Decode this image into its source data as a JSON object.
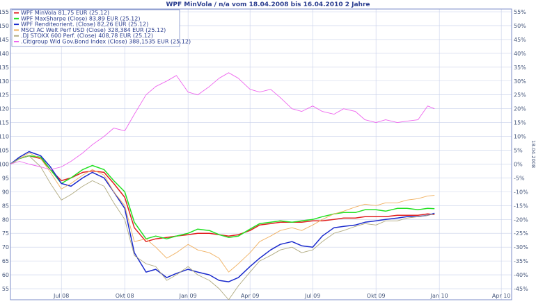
{
  "chart_data": {
    "type": "line",
    "title": "WPF MinVola / n/a vom 18.04.2008 bis 16.04.2010 2 Jahre",
    "side_label": "18.04.2008",
    "x_ticks": [
      "Jul 08",
      "Okt 08",
      "Jan 09",
      "Apr 09",
      "Jul 09",
      "Okt 09",
      "Jan 10",
      "Apr 10"
    ],
    "y_left_ticks": [
      55,
      60,
      65,
      70,
      75,
      80,
      85,
      90,
      95,
      100,
      105,
      110,
      115,
      120,
      125,
      130,
      135,
      140,
      145,
      150,
      155
    ],
    "y_right_ticks": [
      "-45%",
      "-40%",
      "-35%",
      "-30%",
      "-25%",
      "-20%",
      "-15%",
      "-10%",
      "-5%",
      "0%",
      "5%",
      "10%",
      "15%",
      "20%",
      "25%",
      "30%",
      "35%",
      "40%",
      "45%",
      "50%",
      "55%"
    ],
    "ylim": [
      51,
      156
    ],
    "xlim": [
      "2008-04-18",
      "2010-04-16"
    ],
    "grid": true,
    "legend_position": "top-left",
    "series": [
      {
        "name": "WPF MinVola 81,75 EUR (25.12)",
        "color": "#e02020",
        "points": [
          [
            "2008-04-18",
            100
          ],
          [
            "2008-05-01",
            102
          ],
          [
            "2008-05-15",
            103
          ],
          [
            "2008-06-01",
            102
          ],
          [
            "2008-06-15",
            98
          ],
          [
            "2008-07-01",
            94
          ],
          [
            "2008-07-15",
            95
          ],
          [
            "2008-08-01",
            97
          ],
          [
            "2008-08-15",
            97.5
          ],
          [
            "2008-09-01",
            97
          ],
          [
            "2008-09-15",
            93
          ],
          [
            "2008-10-01",
            88
          ],
          [
            "2008-10-15",
            77
          ],
          [
            "2008-11-01",
            72
          ],
          [
            "2008-11-15",
            73
          ],
          [
            "2008-12-01",
            73.5
          ],
          [
            "2008-12-15",
            74
          ],
          [
            "2009-01-01",
            74.5
          ],
          [
            "2009-01-15",
            75
          ],
          [
            "2009-02-01",
            75
          ],
          [
            "2009-02-15",
            74.5
          ],
          [
            "2009-03-01",
            74
          ],
          [
            "2009-03-15",
            74.5
          ],
          [
            "2009-04-01",
            76
          ],
          [
            "2009-04-15",
            78
          ],
          [
            "2009-05-01",
            78.5
          ],
          [
            "2009-05-15",
            79
          ],
          [
            "2009-06-01",
            79
          ],
          [
            "2009-06-15",
            79
          ],
          [
            "2009-07-01",
            79.5
          ],
          [
            "2009-07-15",
            79.5
          ],
          [
            "2009-08-01",
            80
          ],
          [
            "2009-08-15",
            80.5
          ],
          [
            "2009-09-01",
            80.5
          ],
          [
            "2009-09-15",
            81
          ],
          [
            "2009-10-01",
            81
          ],
          [
            "2009-10-15",
            81
          ],
          [
            "2009-11-01",
            81.5
          ],
          [
            "2009-11-15",
            81.5
          ],
          [
            "2009-12-01",
            81.5
          ],
          [
            "2009-12-15",
            82
          ],
          [
            "2009-12-25",
            81.75
          ]
        ]
      },
      {
        "name": "WPF MaxSharpe (Close) 83,89 EUR (25.12)",
        "color": "#22e022",
        "points": [
          [
            "2008-04-18",
            100
          ],
          [
            "2008-05-01",
            102
          ],
          [
            "2008-05-15",
            103
          ],
          [
            "2008-06-01",
            102.5
          ],
          [
            "2008-06-15",
            98
          ],
          [
            "2008-07-01",
            93
          ],
          [
            "2008-07-15",
            95
          ],
          [
            "2008-08-01",
            98
          ],
          [
            "2008-08-15",
            99.5
          ],
          [
            "2008-09-01",
            98
          ],
          [
            "2008-09-15",
            94
          ],
          [
            "2008-10-01",
            90
          ],
          [
            "2008-10-15",
            79
          ],
          [
            "2008-11-01",
            73
          ],
          [
            "2008-11-15",
            74
          ],
          [
            "2008-12-01",
            73
          ],
          [
            "2008-12-15",
            74
          ],
          [
            "2009-01-01",
            75
          ],
          [
            "2009-01-15",
            76.5
          ],
          [
            "2009-02-01",
            76
          ],
          [
            "2009-02-15",
            74.5
          ],
          [
            "2009-03-01",
            73.5
          ],
          [
            "2009-03-15",
            74
          ],
          [
            "2009-04-01",
            76.5
          ],
          [
            "2009-04-15",
            78.5
          ],
          [
            "2009-05-01",
            79
          ],
          [
            "2009-05-15",
            79.5
          ],
          [
            "2009-06-01",
            79
          ],
          [
            "2009-06-15",
            79.5
          ],
          [
            "2009-07-01",
            80
          ],
          [
            "2009-07-15",
            81
          ],
          [
            "2009-08-01",
            82
          ],
          [
            "2009-08-15",
            82.5
          ],
          [
            "2009-09-01",
            82.5
          ],
          [
            "2009-09-15",
            83.5
          ],
          [
            "2009-10-01",
            83.5
          ],
          [
            "2009-10-15",
            83
          ],
          [
            "2009-11-01",
            84
          ],
          [
            "2009-11-15",
            84
          ],
          [
            "2009-12-01",
            83.5
          ],
          [
            "2009-12-15",
            84
          ],
          [
            "2009-12-25",
            83.89
          ]
        ]
      },
      {
        "name": "WPF Renditeorient. (Close) 82,26 EUR (25.12)",
        "color": "#1a2acc",
        "points": [
          [
            "2008-04-18",
            100
          ],
          [
            "2008-05-01",
            102.5
          ],
          [
            "2008-05-15",
            104.5
          ],
          [
            "2008-06-01",
            103
          ],
          [
            "2008-06-15",
            99
          ],
          [
            "2008-07-01",
            93
          ],
          [
            "2008-07-15",
            92
          ],
          [
            "2008-08-01",
            95
          ],
          [
            "2008-08-15",
            97
          ],
          [
            "2008-09-01",
            95
          ],
          [
            "2008-09-15",
            90
          ],
          [
            "2008-10-01",
            84
          ],
          [
            "2008-10-15",
            68
          ],
          [
            "2008-11-01",
            61
          ],
          [
            "2008-11-15",
            62
          ],
          [
            "2008-12-01",
            59
          ],
          [
            "2008-12-15",
            60.5
          ],
          [
            "2009-01-01",
            62
          ],
          [
            "2009-01-15",
            61
          ],
          [
            "2009-02-01",
            60
          ],
          [
            "2009-02-15",
            58
          ],
          [
            "2009-03-01",
            57.5
          ],
          [
            "2009-03-15",
            59
          ],
          [
            "2009-04-01",
            63
          ],
          [
            "2009-04-15",
            66
          ],
          [
            "2009-05-01",
            69
          ],
          [
            "2009-05-15",
            71
          ],
          [
            "2009-06-01",
            72
          ],
          [
            "2009-06-15",
            70.5
          ],
          [
            "2009-07-01",
            70
          ],
          [
            "2009-07-15",
            74
          ],
          [
            "2009-08-01",
            77
          ],
          [
            "2009-08-15",
            77.5
          ],
          [
            "2009-09-01",
            78
          ],
          [
            "2009-09-15",
            79
          ],
          [
            "2009-10-01",
            79.5
          ],
          [
            "2009-10-15",
            80
          ],
          [
            "2009-11-01",
            80.5
          ],
          [
            "2009-11-15",
            81
          ],
          [
            "2009-12-01",
            81
          ],
          [
            "2009-12-15",
            81.5
          ],
          [
            "2009-12-25",
            82.26
          ]
        ]
      },
      {
        "name": "MSCI AC Welt Perf USD (Close) 328,384 EUR (25.12)",
        "color": "#f0b060",
        "points": [
          [
            "2008-04-18",
            100
          ],
          [
            "2008-05-01",
            102
          ],
          [
            "2008-05-15",
            104
          ],
          [
            "2008-06-01",
            102
          ],
          [
            "2008-06-15",
            97
          ],
          [
            "2008-07-01",
            91
          ],
          [
            "2008-07-15",
            93
          ],
          [
            "2008-08-01",
            96
          ],
          [
            "2008-08-15",
            98
          ],
          [
            "2008-09-01",
            96
          ],
          [
            "2008-09-15",
            90
          ],
          [
            "2008-10-01",
            85
          ],
          [
            "2008-10-15",
            72
          ],
          [
            "2008-11-01",
            73
          ],
          [
            "2008-11-15",
            70
          ],
          [
            "2008-12-01",
            66
          ],
          [
            "2008-12-15",
            68
          ],
          [
            "2009-01-01",
            71
          ],
          [
            "2009-01-15",
            69
          ],
          [
            "2009-02-01",
            68
          ],
          [
            "2009-02-15",
            66
          ],
          [
            "2009-03-01",
            61
          ],
          [
            "2009-03-15",
            64
          ],
          [
            "2009-04-01",
            68
          ],
          [
            "2009-04-15",
            72
          ],
          [
            "2009-05-01",
            74
          ],
          [
            "2009-05-15",
            76
          ],
          [
            "2009-06-01",
            77
          ],
          [
            "2009-06-15",
            76
          ],
          [
            "2009-07-01",
            78
          ],
          [
            "2009-07-15",
            80
          ],
          [
            "2009-08-01",
            82
          ],
          [
            "2009-08-15",
            83
          ],
          [
            "2009-09-01",
            84.5
          ],
          [
            "2009-09-15",
            85.5
          ],
          [
            "2009-10-01",
            85
          ],
          [
            "2009-10-15",
            86
          ],
          [
            "2009-11-01",
            86
          ],
          [
            "2009-11-15",
            87
          ],
          [
            "2009-12-01",
            87.5
          ],
          [
            "2009-12-15",
            88.5
          ],
          [
            "2009-12-25",
            88.7
          ]
        ]
      },
      {
        "name": ".DJ STOXX 600 Perf. (Close) 408,78 EUR (25.12)",
        "color": "#b0aa80",
        "points": [
          [
            "2008-04-18",
            100
          ],
          [
            "2008-05-01",
            102
          ],
          [
            "2008-05-15",
            103
          ],
          [
            "2008-06-01",
            99
          ],
          [
            "2008-06-15",
            93
          ],
          [
            "2008-07-01",
            87
          ],
          [
            "2008-07-15",
            89
          ],
          [
            "2008-08-01",
            92
          ],
          [
            "2008-08-15",
            94
          ],
          [
            "2008-09-01",
            92
          ],
          [
            "2008-09-15",
            86
          ],
          [
            "2008-10-01",
            80
          ],
          [
            "2008-10-15",
            67
          ],
          [
            "2008-11-01",
            64
          ],
          [
            "2008-11-15",
            63
          ],
          [
            "2008-12-01",
            58
          ],
          [
            "2008-12-15",
            60
          ],
          [
            "2009-01-01",
            63
          ],
          [
            "2009-01-15",
            60
          ],
          [
            "2009-02-01",
            58
          ],
          [
            "2009-02-15",
            55
          ],
          [
            "2009-03-01",
            51
          ],
          [
            "2009-03-15",
            56
          ],
          [
            "2009-04-01",
            61
          ],
          [
            "2009-04-15",
            65
          ],
          [
            "2009-05-01",
            67
          ],
          [
            "2009-05-15",
            69
          ],
          [
            "2009-06-01",
            70
          ],
          [
            "2009-06-15",
            68
          ],
          [
            "2009-07-01",
            69
          ],
          [
            "2009-07-15",
            72
          ],
          [
            "2009-08-01",
            75
          ],
          [
            "2009-08-15",
            76
          ],
          [
            "2009-09-01",
            77.5
          ],
          [
            "2009-09-15",
            78.5
          ],
          [
            "2009-10-01",
            78
          ],
          [
            "2009-10-15",
            79.5
          ],
          [
            "2009-11-01",
            79.5
          ],
          [
            "2009-11-15",
            80.5
          ],
          [
            "2009-12-01",
            81
          ],
          [
            "2009-12-15",
            81.5
          ],
          [
            "2009-12-25",
            82
          ]
        ]
      },
      {
        "name": ".Citigroup Wld Gov.Bond Index (Close) 388,1535 EUR (25.12)",
        "color": "#ee66ee",
        "points": [
          [
            "2008-04-18",
            100
          ],
          [
            "2008-05-01",
            101
          ],
          [
            "2008-05-15",
            100
          ],
          [
            "2008-06-01",
            99
          ],
          [
            "2008-06-15",
            98
          ],
          [
            "2008-07-01",
            99
          ],
          [
            "2008-07-15",
            101
          ],
          [
            "2008-08-01",
            104
          ],
          [
            "2008-08-15",
            107
          ],
          [
            "2008-09-01",
            110
          ],
          [
            "2008-09-15",
            113
          ],
          [
            "2008-10-01",
            112
          ],
          [
            "2008-10-15",
            118
          ],
          [
            "2008-11-01",
            125
          ],
          [
            "2008-11-15",
            128
          ],
          [
            "2008-12-01",
            130
          ],
          [
            "2008-12-15",
            132
          ],
          [
            "2009-01-01",
            126
          ],
          [
            "2009-01-15",
            125
          ],
          [
            "2009-02-01",
            128
          ],
          [
            "2009-02-15",
            131
          ],
          [
            "2009-03-01",
            133
          ],
          [
            "2009-03-15",
            131
          ],
          [
            "2009-04-01",
            127
          ],
          [
            "2009-04-15",
            126
          ],
          [
            "2009-05-01",
            127
          ],
          [
            "2009-05-15",
            124
          ],
          [
            "2009-06-01",
            120
          ],
          [
            "2009-06-15",
            119
          ],
          [
            "2009-07-01",
            121
          ],
          [
            "2009-07-15",
            119
          ],
          [
            "2009-08-01",
            118
          ],
          [
            "2009-08-15",
            120
          ],
          [
            "2009-09-01",
            119
          ],
          [
            "2009-09-15",
            116
          ],
          [
            "2009-10-01",
            115
          ],
          [
            "2009-10-15",
            116
          ],
          [
            "2009-11-01",
            115
          ],
          [
            "2009-11-15",
            115.5
          ],
          [
            "2009-12-01",
            116
          ],
          [
            "2009-12-15",
            121
          ],
          [
            "2009-12-25",
            120
          ]
        ]
      }
    ]
  },
  "colors": {
    "frame": "#7e8ec9",
    "grid": "#c8d0ea",
    "text": "#2a3d8f"
  }
}
